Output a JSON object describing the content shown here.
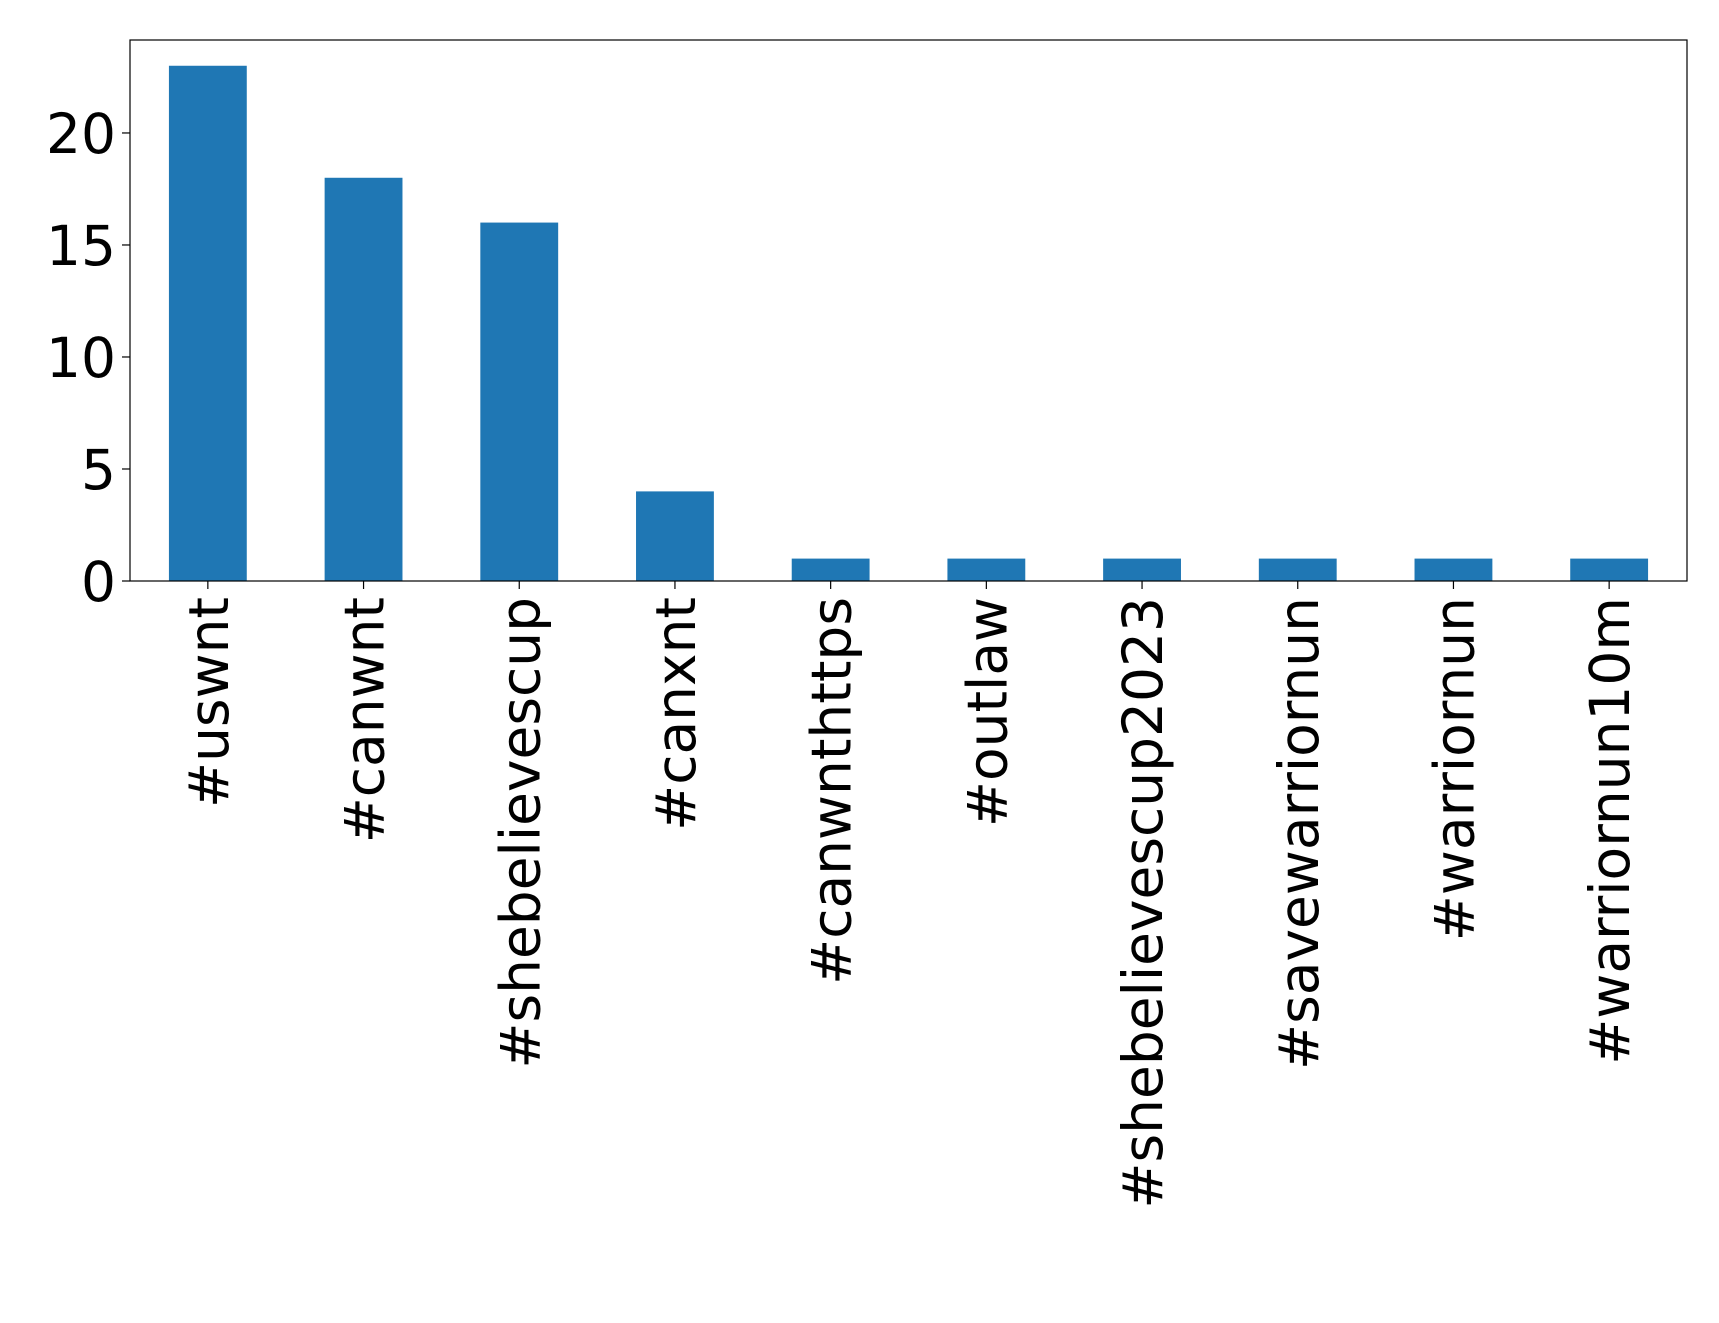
{
  "chart_data": {
    "type": "bar",
    "categories": [
      "#uswnt",
      "#canwnt",
      "#shebelievescup",
      "#canxnt",
      "#canwnthttps",
      "#outlaw",
      "#shebelievescup2023",
      "#savewarriornun",
      "#warriornun",
      "#warriornun10m"
    ],
    "values": [
      23,
      18,
      16,
      4,
      1,
      1,
      1,
      1,
      1,
      1
    ],
    "color": "#1f77b4",
    "ylim": [
      0,
      24.15
    ],
    "yticks": [
      0,
      5,
      10,
      15,
      20
    ],
    "grid": false
  }
}
